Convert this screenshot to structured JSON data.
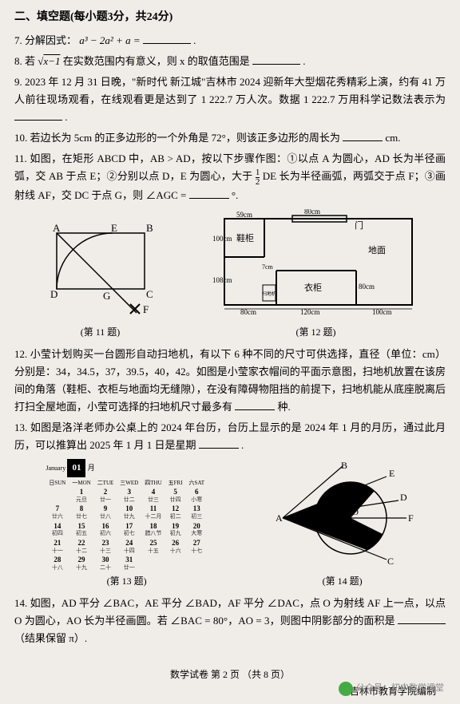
{
  "header": "二、填空题(每小题3分，共24分)",
  "q7": {
    "n": "7.",
    "t1": "分解因式：",
    "expr": "a³ − 2a² + a =",
    "t2": "."
  },
  "q8": {
    "n": "8.",
    "t1": "若",
    "rad": "√(x−1)",
    "t2": "在实数范围内有意义，则 x 的取值范围是",
    "t3": "."
  },
  "q9": {
    "n": "9.",
    "t1": "2023 年 12 月 31 日晚，\"新时代 新江城\"吉林市 2024 迎新年大型烟花秀精彩上演，约有 41 万人前往现场观看，在线观看更是达到了 1 222.7 万人次。数据 1 222.7 万用科学记数法表示为",
    "t2": "."
  },
  "q10": {
    "n": "10.",
    "t1": "若边长为 5cm 的正多边形的一个外角是 72°，则该正多边形的周长为",
    "t2": "cm."
  },
  "q11": {
    "n": "11.",
    "t1": "如图，在矩形 ABCD 中，AB > AD，按以下步骤作图：①以点 A 为圆心，AD 长为半径画弧，交 AB 于点 E；②分别以点 D，E 为圆心，大于",
    "frac_n": "1",
    "frac_d": "2",
    "t2": "DE 长为半径画弧，两弧交于点 F；③画射线 AF，交 DC 于点 G，则 ∠AGC =",
    "t3": "°."
  },
  "fig11": {
    "labels": {
      "A": "A",
      "B": "B",
      "C": "C",
      "D": "D",
      "E": "E",
      "F": "F",
      "G": "G"
    },
    "cap": "(第 11 题)"
  },
  "fig12": {
    "d59": "59cm",
    "d80a": "80cm",
    "door": "门",
    "d100": "100cm",
    "shoe": "鞋柜",
    "floor": "地面",
    "d108": "108cm",
    "d7": "7cm",
    "sweep": "扫地机",
    "wardrobe": "衣柜",
    "d80b": "80cm",
    "d80c": "80cm",
    "d120": "120cm",
    "d100b": "100cm",
    "cap": "(第 12 题)"
  },
  "q12": {
    "n": "12.",
    "t1": "小莹计划购买一台圆形自动扫地机，有以下 6 种不同的尺寸可供选择，直径（单位：cm）分别是：34，34.5，37，39.5，40，42。如图是小莹家衣帽间的平面示意图，扫地机放置在该房间的角落（鞋柜、衣柜与地面均无缝隙），在没有障碍物阻挡的前提下，扫地机能从底座脱离后打扫全屋地面，小莹可选择的扫地机尺寸最多有",
    "t2": "种."
  },
  "q13": {
    "n": "13.",
    "t1": "如图是洛洋老师办公桌上的 2024 年台历，台历上显示的是 2024 年 1 月的月历，通过此月历，可以推算出 2025 年 1 月 1 日是星期",
    "t2": "."
  },
  "cal": {
    "title_en": "January",
    "title_num": "01",
    "title_cn": "月",
    "days": [
      "日SUN",
      "一MON",
      "二TUE",
      "三WED",
      "四THU",
      "五FRI",
      "六SAT"
    ],
    "rows": [
      [
        [
          "",
          "",
          ""
        ],
        [
          "1",
          "元旦"
        ],
        [
          "2",
          "廿一"
        ],
        [
          "3",
          "廿二"
        ],
        [
          "4",
          "廿三"
        ],
        [
          "5",
          "廿四"
        ],
        [
          "6",
          "小寒"
        ]
      ],
      [
        [
          "7",
          "廿六"
        ],
        [
          "8",
          "廿七"
        ],
        [
          "9",
          "廿八"
        ],
        [
          "10",
          "廿九"
        ],
        [
          "11",
          "十二月"
        ],
        [
          "12",
          "初二"
        ],
        [
          "13",
          "初三"
        ]
      ],
      [
        [
          "14",
          "初四"
        ],
        [
          "15",
          "初五"
        ],
        [
          "16",
          "初六"
        ],
        [
          "17",
          "初七"
        ],
        [
          "18",
          "腊八节"
        ],
        [
          "19",
          "初九"
        ],
        [
          "20",
          "大寒"
        ]
      ],
      [
        [
          "21",
          "十一"
        ],
        [
          "22",
          "十二"
        ],
        [
          "23",
          "十三"
        ],
        [
          "24",
          "十四"
        ],
        [
          "25",
          "十五"
        ],
        [
          "26",
          "十六"
        ],
        [
          "27",
          "十七"
        ]
      ],
      [
        [
          "28",
          "十八"
        ],
        [
          "29",
          "十九"
        ],
        [
          "30",
          "二十"
        ],
        [
          "31",
          "廿一"
        ],
        [
          "",
          ""
        ],
        [
          "",
          ""
        ],
        [
          "",
          ""
        ]
      ]
    ],
    "cap": "(第 13 题)"
  },
  "fig14": {
    "labels": {
      "A": "A",
      "B": "B",
      "C": "C",
      "D": "D",
      "E": "E",
      "F": "F",
      "O": "O"
    },
    "cap": "(第 14 题)"
  },
  "q14": {
    "n": "14.",
    "t1": "如图，AD 平分 ∠BAC，AE 平分 ∠BAD，AF 平分 ∠DAC，点 O 为射线 AF 上一点，以点 O 为圆心，AO 长为半径画圆。若 ∠BAC = 80°，AO = 3，则图中阴影部分的面积是",
    "t2": "（结果保留 π）."
  },
  "footer": {
    "t": "数学试卷 第 2 页 （共 8 页）",
    "pub": "吉林市教育学院编制",
    "wm": "公众号：初中数学课堂"
  }
}
